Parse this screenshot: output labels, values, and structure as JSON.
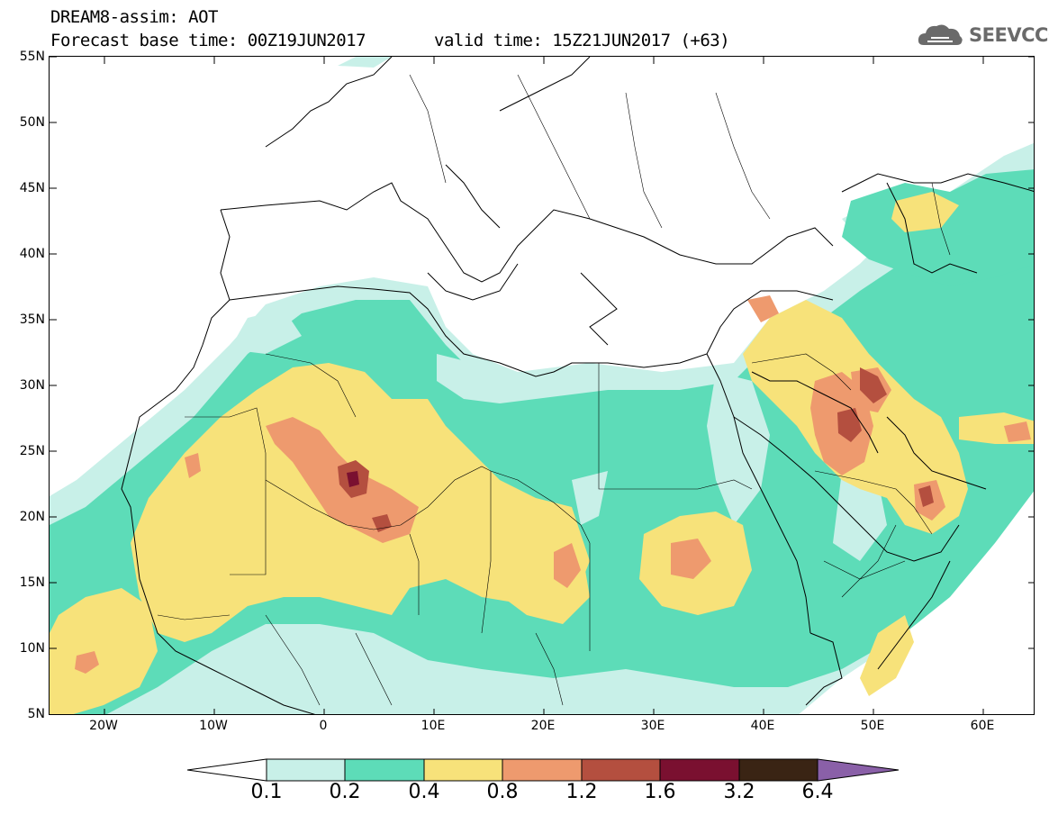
{
  "header": {
    "title_line1": "DREAM8-assim: AOT",
    "title_line2": "Forecast base time: 00Z19JUN2017",
    "title_line2b": "valid time: 15Z21JUN2017 (+63)",
    "logo_text": "SEEVCCC",
    "logo_icon": "cloud-icon"
  },
  "map": {
    "lat_labels": [
      "55N",
      "50N",
      "45N",
      "40N",
      "35N",
      "30N",
      "25N",
      "20N",
      "15N",
      "10N",
      "5N"
    ],
    "lon_labels": [
      "20W",
      "10W",
      "0",
      "10E",
      "20E",
      "30E",
      "40E",
      "50E",
      "60E"
    ]
  },
  "legend": {
    "labels": [
      "0.1",
      "0.2",
      "0.4",
      "0.8",
      "1.2",
      "1.6",
      "3.2",
      "6.4"
    ],
    "colors": [
      "#ffffff",
      "#c8f0e8",
      "#5ddcb8",
      "#f7e27a",
      "#ee9a6e",
      "#b44f3f",
      "#7a1030",
      "#3a2414",
      "#8a60a8"
    ]
  },
  "colors": {
    "light_teal": "#c8f0e8",
    "teal": "#5ddcb8",
    "yellow": "#f7e27a",
    "orange": "#ee9a6e",
    "rust": "#b44f3f",
    "maroon": "#7a1030"
  }
}
